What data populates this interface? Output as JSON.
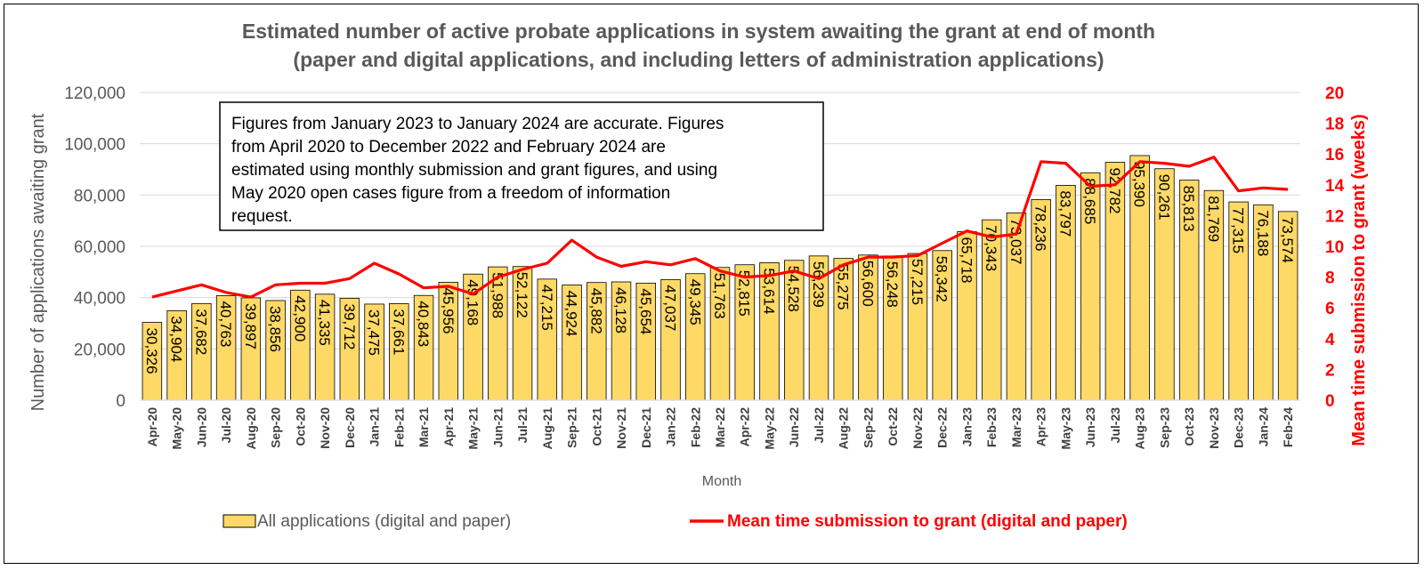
{
  "chart_data": {
    "type": "bar",
    "title": [
      "Estimated number of active probate applications in system awaiting the grant at end of month",
      "(paper and digital applications, and including letters of administration applications)"
    ],
    "xlabel": "Month",
    "ylabel": "Number of applications awaiting grant",
    "y2label": "Mean time submission to grant (weeks)",
    "ylim": [
      0,
      120000
    ],
    "y2lim": [
      0,
      20
    ],
    "yticks": [
      "0",
      "20,000",
      "40,000",
      "60,000",
      "80,000",
      "100,000",
      "120,000"
    ],
    "y2ticks": [
      "0",
      "2",
      "4",
      "6",
      "8",
      "10",
      "12",
      "14",
      "16",
      "18",
      "20"
    ],
    "grid": true,
    "legend_position": "bottom",
    "colors": {
      "bar": "#ffd966",
      "bar_edge": "#000000",
      "line": "#ff0000",
      "grid": "#d9d9d9"
    },
    "note": [
      "Figures from January 2023 to January 2024 are accurate. Figures",
      "from April 2020 to December 2022 and February 2024 are",
      "estimated using monthly submission and grant figures, and using",
      "May 2020 open cases figure from a freedom of information",
      "request."
    ],
    "categories": [
      "Apr-20",
      "May-20",
      "Jun-20",
      "Jul-20",
      "Aug-20",
      "Sep-20",
      "Oct-20",
      "Nov-20",
      "Dec-20",
      "Jan-21",
      "Feb-21",
      "Mar-21",
      "Apr-21",
      "May-21",
      "Jun-21",
      "Jul-21",
      "Aug-21",
      "Sep-21",
      "Oct-21",
      "Nov-21",
      "Dec-21",
      "Jan-22",
      "Feb-22",
      "Mar-22",
      "Apr-22",
      "May-22",
      "Jun-22",
      "Jul-22",
      "Aug-22",
      "Sep-22",
      "Oct-22",
      "Nov-22",
      "Dec-22",
      "Jan-23",
      "Feb-23",
      "Mar-23",
      "Apr-23",
      "May-23",
      "Jun-23",
      "Jul-23",
      "Aug-23",
      "Sep-23",
      "Oct-23",
      "Nov-23",
      "Dec-23",
      "Jan-24",
      "Feb-24"
    ],
    "series": [
      {
        "name": "All applications (digital and paper)",
        "type": "bar",
        "axis": "left",
        "values": [
          30326,
          34904,
          37682,
          40763,
          39897,
          38856,
          42900,
          41335,
          39712,
          37475,
          37661,
          40843,
          45956,
          49168,
          51988,
          52122,
          47215,
          44924,
          45882,
          46128,
          45654,
          47037,
          49345,
          51763,
          52815,
          53614,
          54528,
          56239,
          55275,
          56600,
          56248,
          57215,
          58342,
          65718,
          70343,
          73037,
          78236,
          83797,
          88685,
          92782,
          95390,
          90261,
          85813,
          81769,
          77315,
          76188,
          73574
        ],
        "labels": [
          "30,326",
          "34,904",
          "37,682",
          "40,763",
          "39,897",
          "38,856",
          "42,900",
          "41,335",
          "39,712",
          "37,475",
          "37,661",
          "40,843",
          "45,956",
          "49,168",
          "51,988",
          "52,122",
          "47,215",
          "44,924",
          "45,882",
          "46,128",
          "45,654",
          "47,037",
          "49,345",
          "51,763",
          "52,815",
          "53,614",
          "54,528",
          "56,239",
          "55,275",
          "56,600",
          "56,248",
          "57,215",
          "58,342",
          "65,718",
          "70,343",
          "73,037",
          "78,236",
          "83,797",
          "88,685",
          "92,782",
          "95,390",
          "90,261",
          "85,813",
          "81,769",
          "77,315",
          "76,188",
          "73,574"
        ]
      },
      {
        "name": "Mean time submission to grant (digital and paper)",
        "type": "line",
        "axis": "right",
        "values": [
          6.7,
          7.1,
          7.5,
          7.0,
          6.7,
          7.5,
          7.6,
          7.6,
          7.9,
          8.9,
          8.2,
          7.3,
          7.4,
          6.9,
          8.0,
          8.5,
          8.9,
          10.4,
          9.3,
          8.7,
          9.0,
          8.8,
          9.2,
          8.4,
          8.0,
          8.1,
          8.4,
          7.9,
          8.8,
          9.3,
          9.3,
          9.4,
          10.2,
          11.0,
          10.6,
          10.8,
          15.5,
          15.4,
          13.9,
          14.0,
          15.5,
          15.4,
          15.2,
          15.8,
          13.6,
          13.8,
          13.7
        ]
      }
    ]
  }
}
